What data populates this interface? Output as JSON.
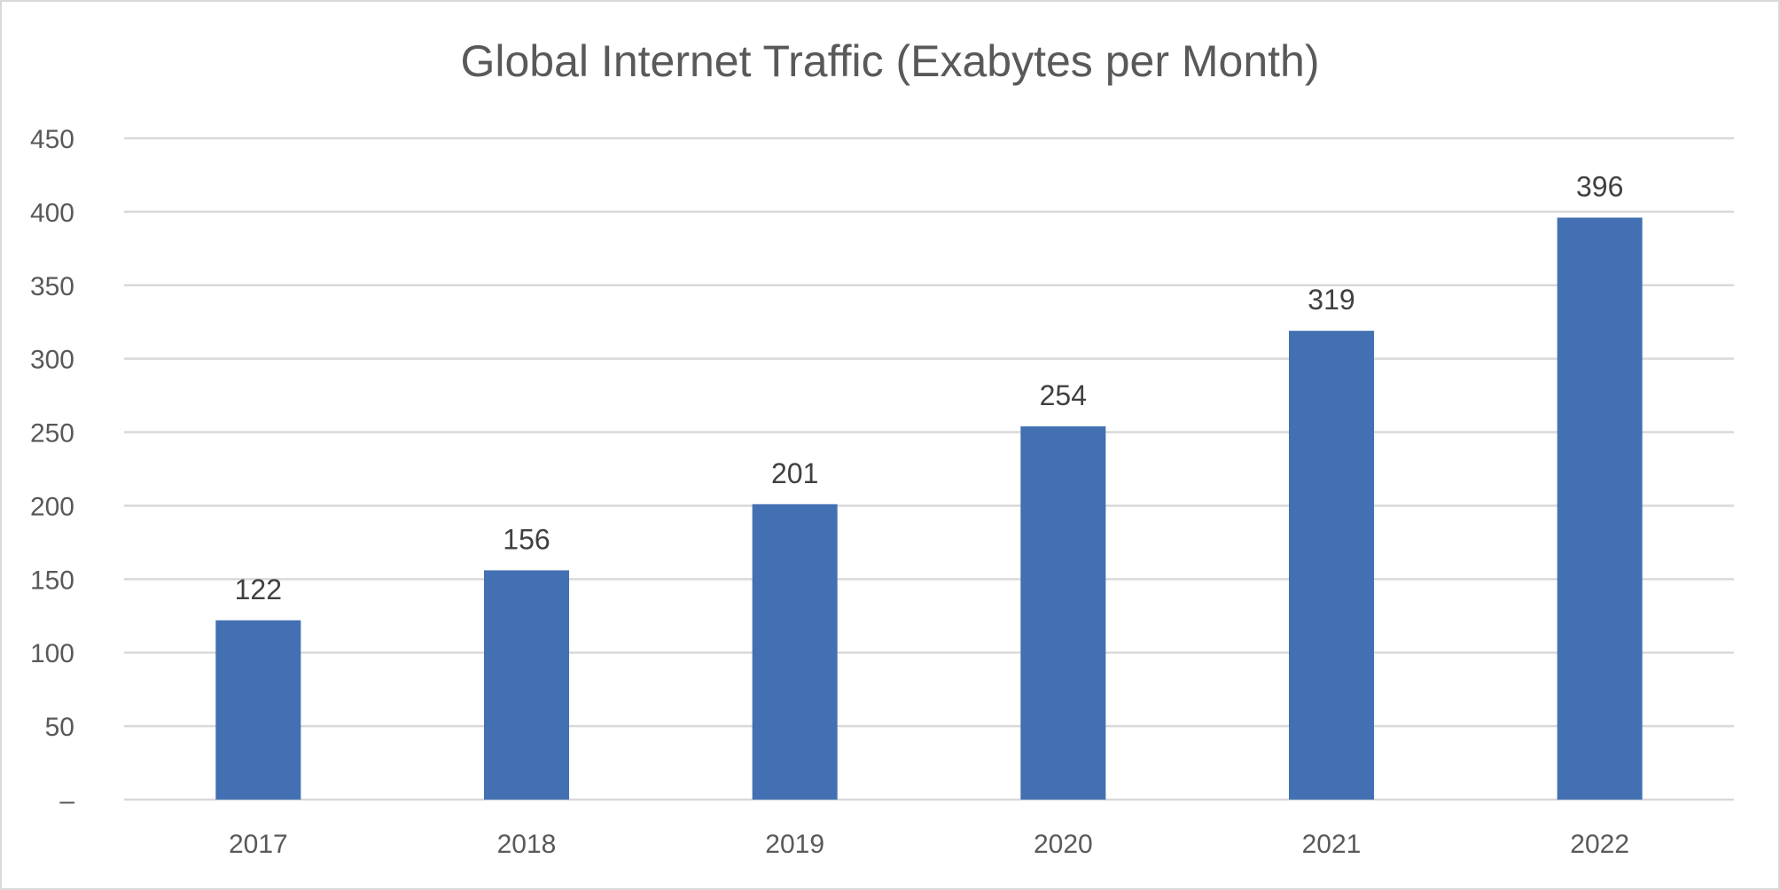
{
  "chart_data": {
    "type": "bar",
    "title": "Global Internet Traffic (Exabytes per Month)",
    "xlabel": "",
    "ylabel": "",
    "categories": [
      "2017",
      "2018",
      "2019",
      "2020",
      "2021",
      "2022"
    ],
    "values": [
      122,
      156,
      201,
      254,
      319,
      396
    ],
    "data_labels": [
      "122",
      "156",
      "201",
      "254",
      "319",
      "396"
    ],
    "ylim": [
      0,
      450
    ],
    "yticks": [
      0,
      50,
      100,
      150,
      200,
      250,
      300,
      350,
      400,
      450
    ],
    "ytick_labels": [
      "–",
      "50",
      "100",
      "150",
      "200",
      "250",
      "300",
      "350",
      "400",
      "450"
    ],
    "grid": true,
    "legend": "none",
    "colors": {
      "bar": "#4270b2",
      "grid": "#d9d9d9",
      "text": "#595959",
      "data_label": "#404040"
    }
  }
}
